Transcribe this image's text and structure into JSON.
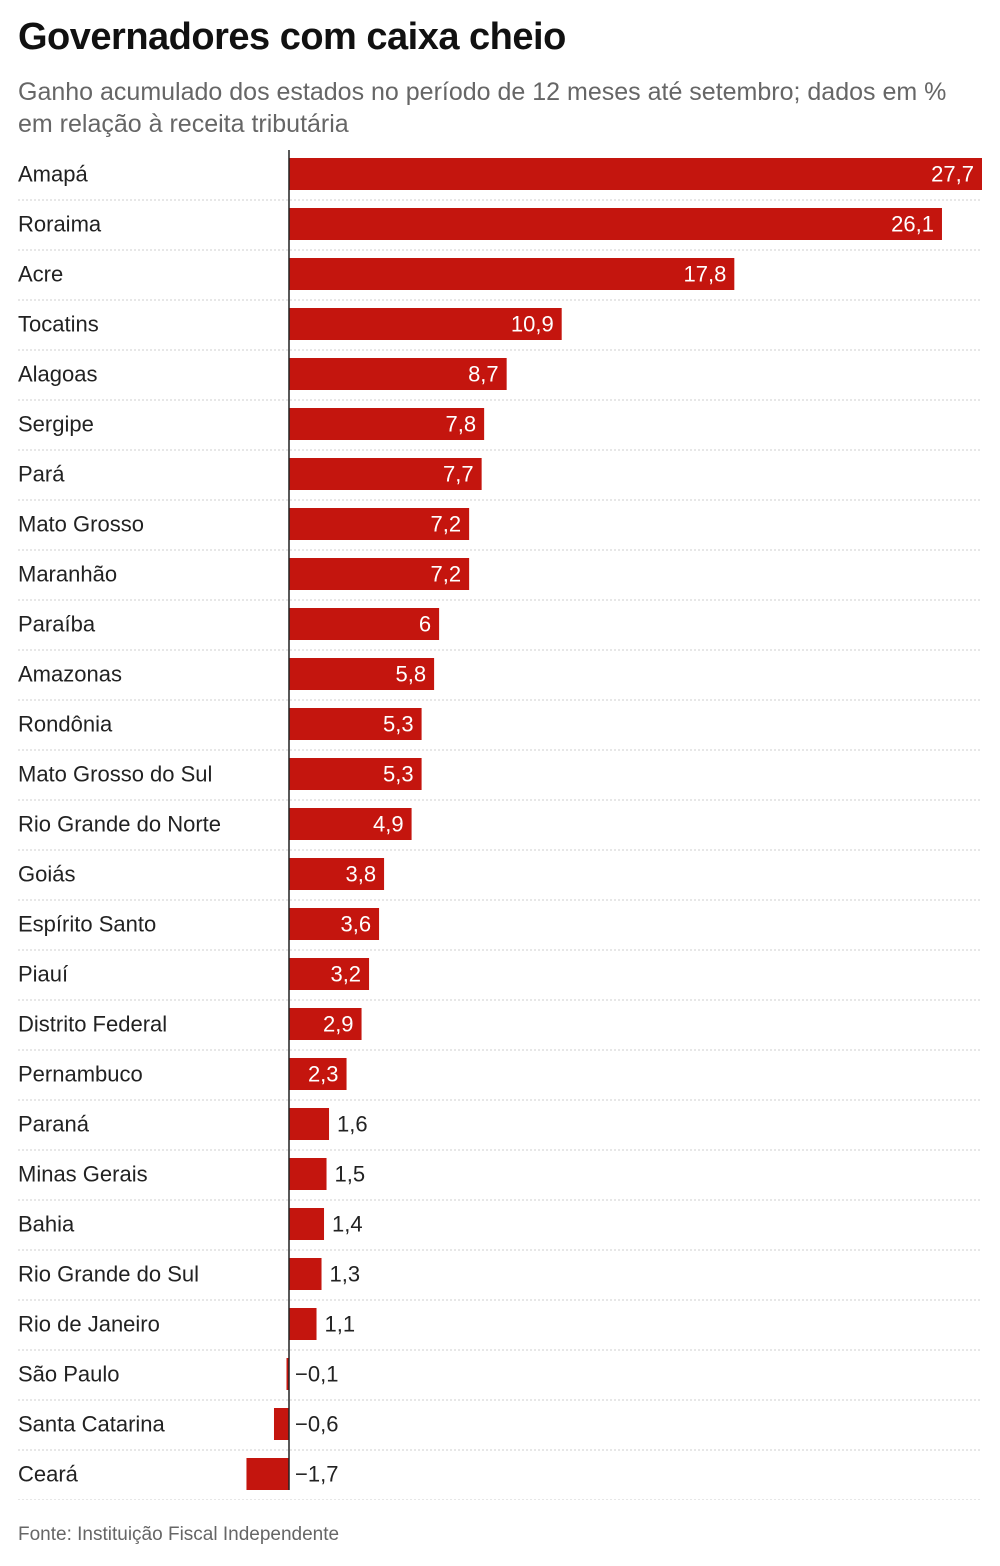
{
  "header": {
    "title": "Governadores com caixa cheio",
    "subtitle": "Ganho acumulado dos estados no período de 12 meses até setembro; dados em % em relação à receita tributária"
  },
  "footer": {
    "source": "Fonte: Instituição Fiscal Independente"
  },
  "colors": {
    "bar": "#c4150e",
    "grid": "#cfcfcf",
    "axis": "#222222",
    "label": "#222222",
    "value_inside": "#ffffff"
  },
  "chart_data": {
    "type": "bar",
    "orientation": "horizontal",
    "title": "Governadores com caixa cheio",
    "subtitle": "Ganho acumulado dos estados no período de 12 meses até setembro; dados em % em relação à receita tributária",
    "xlabel": "",
    "ylabel": "",
    "xlim": [
      -1.7,
      27.7
    ],
    "grid": false,
    "categories": [
      "Amapá",
      "Roraima",
      "Acre",
      "Tocatins",
      "Alagoas",
      "Sergipe",
      "Pará",
      "Mato Grosso",
      "Maranhão",
      "Paraíba",
      "Amazonas",
      "Rondônia",
      "Mato Grosso do Sul",
      "Rio Grande do Norte",
      "Goiás",
      "Espírito Santo",
      "Piauí",
      "Distrito Federal",
      "Pernambuco",
      "Paraná",
      "Minas Gerais",
      "Bahia",
      "Rio Grande do Sul",
      "Rio de Janeiro",
      "São Paulo",
      "Santa Catarina",
      "Ceará"
    ],
    "values": [
      27.7,
      26.1,
      17.8,
      10.9,
      8.7,
      7.8,
      7.7,
      7.2,
      7.2,
      6,
      5.8,
      5.3,
      5.3,
      4.9,
      3.8,
      3.6,
      3.2,
      2.9,
      2.3,
      1.6,
      1.5,
      1.4,
      1.3,
      1.1,
      -0.1,
      -0.6,
      -1.7
    ],
    "value_labels": [
      "27,7",
      "26,1",
      "17,8",
      "10,9",
      "8,7",
      "7,8",
      "7,7",
      "7,2",
      "7,2",
      "6",
      "5,8",
      "5,3",
      "5,3",
      "4,9",
      "3,8",
      "3,6",
      "3,2",
      "2,9",
      "2,3",
      "1,6",
      "1,5",
      "1,4",
      "1,3",
      "1,1",
      "−0,1",
      "−0,6",
      "−1,7"
    ],
    "source": "Fonte: Instituição Fiscal Independente"
  }
}
